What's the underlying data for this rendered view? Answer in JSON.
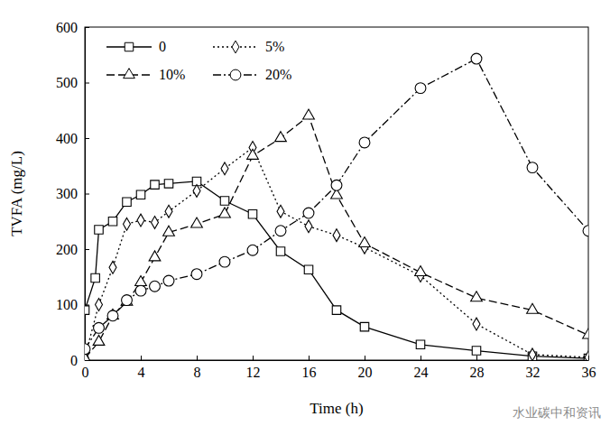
{
  "chart_data": {
    "type": "line",
    "x_label": "Time (h)",
    "y_label": "TVFA (mg/L)",
    "xlim": [
      0,
      36
    ],
    "xticks": [
      0,
      4,
      8,
      12,
      16,
      20,
      24,
      28,
      32,
      36
    ],
    "ylim": [
      0,
      600
    ],
    "yticks": [
      0,
      100,
      200,
      300,
      400,
      500,
      600
    ],
    "grid": false,
    "legend": "upper left",
    "annotations": [
      "水业碳中和资讯"
    ],
    "series": [
      {
        "name": "0",
        "color": "#000000",
        "marker": "square",
        "line_style": "solid",
        "x": [
          0,
          0.75,
          1,
          2,
          3,
          4,
          5,
          6,
          8,
          10,
          12,
          14,
          16,
          18,
          20,
          24,
          28,
          32,
          36
        ],
        "values": [
          90,
          148,
          235,
          250,
          285,
          298,
          316,
          318,
          322,
          287,
          263,
          196,
          163,
          90,
          60,
          28,
          17,
          7,
          3
        ]
      },
      {
        "name": "5%",
        "color": "#000000",
        "marker": "diamond",
        "line_style": "dotted",
        "x": [
          0,
          1,
          2,
          3,
          4,
          5,
          6,
          8,
          10,
          12,
          14,
          16,
          18,
          20,
          24,
          28,
          32,
          36
        ],
        "values": [
          5,
          100,
          167,
          245,
          252,
          248,
          268,
          305,
          345,
          383,
          268,
          241,
          225,
          203,
          152,
          65,
          10,
          5
        ]
      },
      {
        "name": "10%",
        "color": "#000000",
        "marker": "triangle",
        "line_style": "dashed",
        "x": [
          0,
          1,
          2,
          3,
          4,
          5,
          6,
          8,
          10,
          12,
          14,
          16,
          18,
          20,
          24,
          28,
          32,
          36
        ],
        "values": [
          3,
          33,
          80,
          105,
          140,
          185,
          230,
          245,
          263,
          368,
          400,
          440,
          297,
          210,
          158,
          112,
          90,
          45
        ]
      },
      {
        "name": "20%",
        "color": "#000000",
        "marker": "circle",
        "line_style": "dashdot",
        "x": [
          0,
          1,
          2,
          3,
          4,
          5,
          6,
          8,
          10,
          12,
          14,
          16,
          18,
          20,
          24,
          28,
          32,
          36
        ],
        "values": [
          20,
          58,
          80,
          108,
          125,
          133,
          143,
          155,
          177,
          198,
          233,
          265,
          315,
          392,
          490,
          543,
          347,
          233
        ]
      }
    ]
  }
}
